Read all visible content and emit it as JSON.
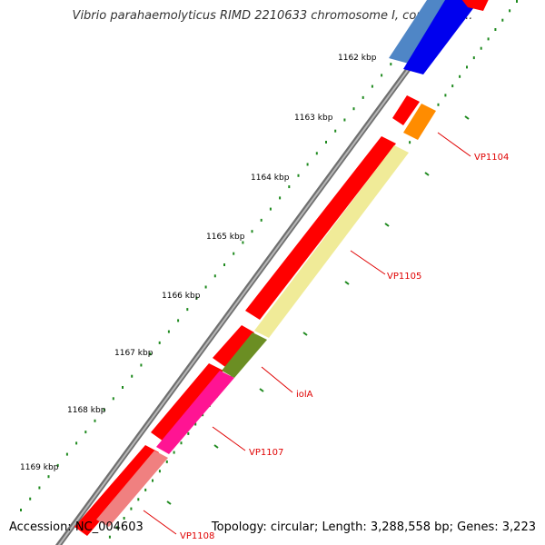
{
  "title": "Vibrio parahaemolyticus RIMD 2210633 chromosome I, complete ...",
  "footer": {
    "accession": "Accession: NC_004603",
    "stats": "Topology: circular; Length: 3,288,558 bp; Genes: 3,223"
  },
  "ticks": [
    "1162 kbp",
    "1163 kbp",
    "1164 kbp",
    "1165 kbp",
    "1166 kbp",
    "1167 kbp",
    "1168 kbp",
    "1169 kbp"
  ],
  "gene_labels": [
    "VP1104",
    "VP1105",
    "iolA",
    "VP1107",
    "VP1108"
  ],
  "colors": {
    "backbone": "#888888",
    "tick_dots": "#1f8a1f",
    "label_red": "#e00000",
    "cds_red": "#ff0000",
    "steelblue": "#4f86c6",
    "blue": "#0000ee",
    "orange": "#ff8c00",
    "khaki": "#f0eb98",
    "olive": "#6b8e23",
    "magenta": "#ff1493",
    "salmon": "#f08080"
  }
}
